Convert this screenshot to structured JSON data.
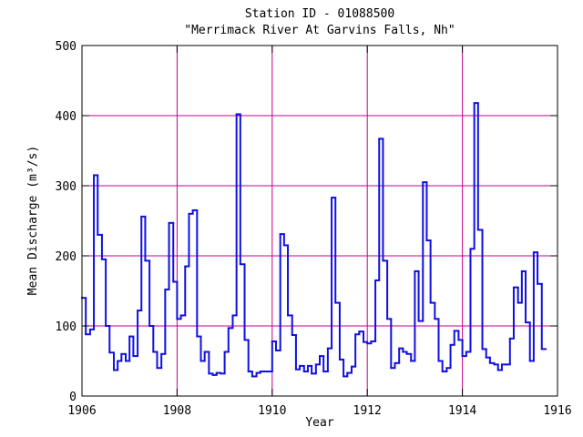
{
  "chart_data": {
    "type": "step",
    "title": "Station ID - 01088500",
    "subtitle": "\"Merrimack River At Garvins Falls, Nh\"",
    "x_label": "Year",
    "y_label": "Mean Discharge (m³/s)",
    "xlim": [
      1906,
      1916
    ],
    "xticks": [
      1906,
      1908,
      1910,
      1912,
      1914,
      1916
    ],
    "ylim": [
      0,
      500
    ],
    "yticks": [
      0,
      100,
      200,
      300,
      400,
      500
    ],
    "grid": true,
    "grid_color": "#c8008c",
    "series": [
      {
        "name": "Mean Discharge",
        "color": "#1010e0",
        "x": [
          1906.0,
          1906.08,
          1906.17,
          1906.25,
          1906.33,
          1906.42,
          1906.5,
          1906.58,
          1906.67,
          1906.75,
          1906.83,
          1906.92,
          1907.0,
          1907.08,
          1907.17,
          1907.25,
          1907.33,
          1907.42,
          1907.5,
          1907.58,
          1907.67,
          1907.75,
          1907.83,
          1907.92,
          1908.0,
          1908.08,
          1908.17,
          1908.25,
          1908.33,
          1908.42,
          1908.5,
          1908.58,
          1908.67,
          1908.75,
          1908.83,
          1908.92,
          1909.0,
          1909.08,
          1909.17,
          1909.25,
          1909.33,
          1909.42,
          1909.5,
          1909.58,
          1909.67,
          1909.75,
          1909.83,
          1909.92,
          1910.0,
          1910.08,
          1910.17,
          1910.25,
          1910.33,
          1910.42,
          1910.5,
          1910.58,
          1910.67,
          1910.75,
          1910.83,
          1910.92,
          1911.0,
          1911.08,
          1911.17,
          1911.25,
          1911.33,
          1911.42,
          1911.5,
          1911.58,
          1911.67,
          1911.75,
          1911.83,
          1911.92,
          1912.0,
          1912.08,
          1912.17,
          1912.25,
          1912.33,
          1912.42,
          1912.5,
          1912.58,
          1912.67,
          1912.75,
          1912.83,
          1912.92,
          1913.0,
          1913.08,
          1913.17,
          1913.25,
          1913.33,
          1913.42,
          1913.5,
          1913.58,
          1913.67,
          1913.75,
          1913.83,
          1913.92,
          1914.0,
          1914.08,
          1914.17,
          1914.25,
          1914.33,
          1914.42,
          1914.5,
          1914.58,
          1914.67,
          1914.75,
          1914.83,
          1914.92,
          1915.0,
          1915.08,
          1915.17,
          1915.25,
          1915.33,
          1915.42,
          1915.5,
          1915.58,
          1915.67
        ],
        "values": [
          140,
          88,
          95,
          315,
          230,
          195,
          100,
          62,
          37,
          50,
          60,
          50,
          85,
          57,
          122,
          256,
          193,
          100,
          63,
          40,
          60,
          152,
          247,
          163,
          110,
          115,
          185,
          260,
          265,
          85,
          50,
          63,
          32,
          30,
          33,
          32,
          63,
          97,
          115,
          402,
          188,
          80,
          35,
          28,
          33,
          35,
          35,
          35,
          78,
          65,
          231,
          215,
          115,
          87,
          38,
          43,
          35,
          43,
          32,
          45,
          57,
          35,
          68,
          283,
          133,
          52,
          28,
          33,
          42,
          88,
          92,
          77,
          75,
          78,
          165,
          367,
          193,
          110,
          40,
          47,
          68,
          63,
          60,
          50,
          178,
          107,
          305,
          222,
          133,
          110,
          50,
          35,
          40,
          73,
          93,
          80,
          57,
          63,
          210,
          418,
          237,
          67,
          55,
          47,
          45,
          37,
          45,
          45,
          82,
          155,
          133,
          178,
          105,
          50,
          205,
          160,
          67
        ]
      }
    ]
  }
}
